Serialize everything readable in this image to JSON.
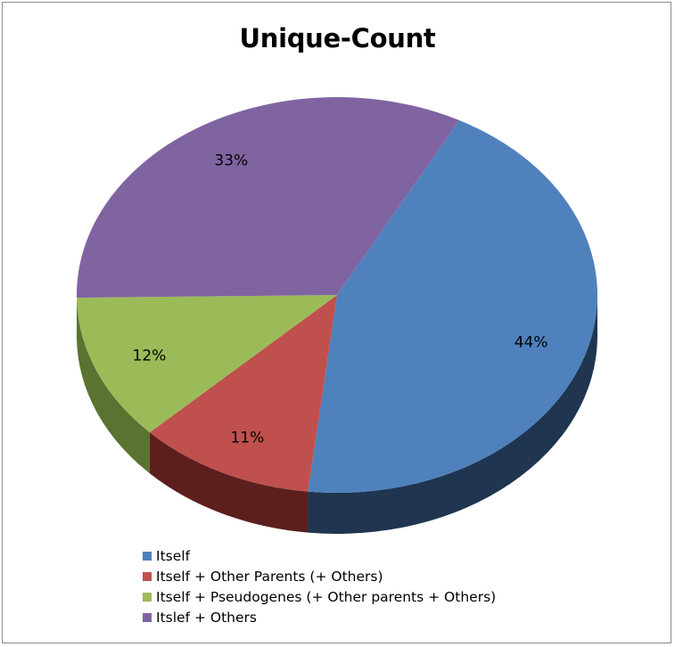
{
  "chart_data": {
    "type": "pie",
    "title": "Unique-Count",
    "slices": [
      {
        "label": "Itself",
        "value": 44,
        "display": "44%",
        "color": "#4f81bd",
        "side_color": "#1f3550"
      },
      {
        "label": "Itself + Other Parents (+ Others)",
        "value": 11,
        "display": "11%",
        "color": "#c0504d",
        "side_color": "#5c1f1e"
      },
      {
        "label": "Itself + Pseudogenes (+ Other parents + Others)",
        "value": 12,
        "display": "12%",
        "color": "#9bbb59",
        "side_color": "#5a7330"
      },
      {
        "label": "Itslef + Others",
        "value": 33,
        "display": "33%",
        "color": "#8064a2",
        "side_color": "#4a3a60"
      }
    ],
    "legend_position": "bottom",
    "style": "3d-pie"
  }
}
